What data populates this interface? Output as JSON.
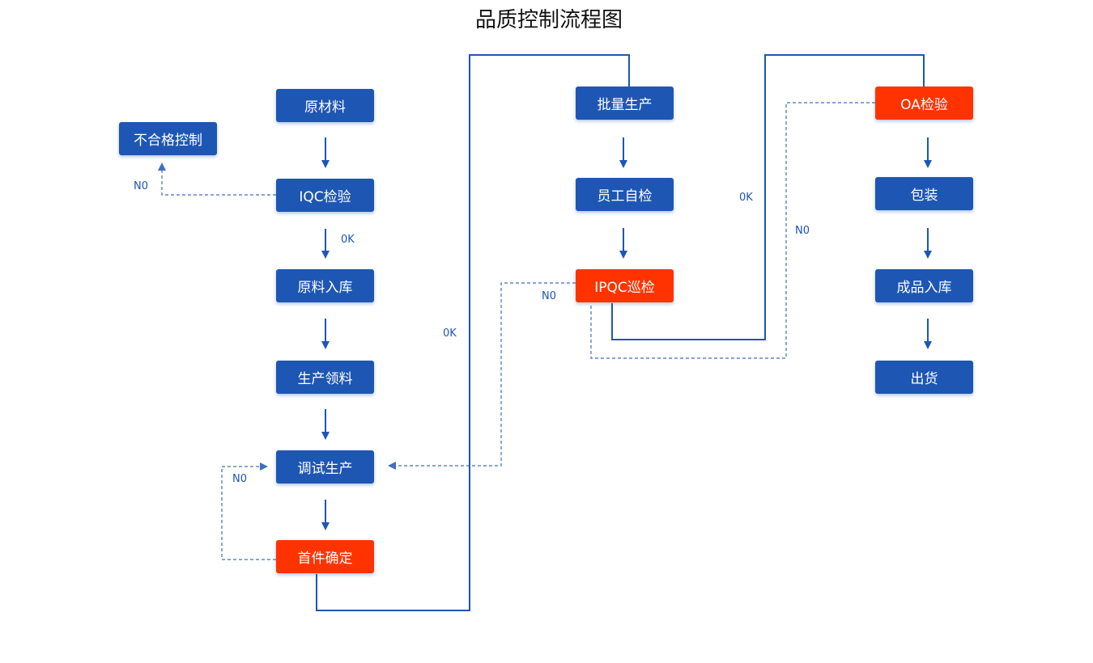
{
  "title": "品质控制流程图",
  "colors": {
    "process": "#1e56b4",
    "inspection": "#ff3300",
    "line": "#1e56b4"
  },
  "nodes": {
    "raw_material": "原材料",
    "nonconforming_control": "不合格控制",
    "iqc": "IQC检验",
    "raw_storage": "原料入库",
    "material_requisition": "生产领料",
    "trial_production": "调试生产",
    "first_article": "首件确定",
    "mass_production": "批量生产",
    "self_inspection": "员工自检",
    "ipqc": "IPQC巡检",
    "oa": "OA检验",
    "packaging": "包装",
    "finished_storage": "成品入库",
    "shipment": "出货"
  },
  "edge_labels": {
    "iqc_no": "N0",
    "iqc_ok": "0K",
    "first_article_no": "N0",
    "first_article_ok": "0K",
    "ipqc_no": "N0",
    "ipqc_ok": "0K",
    "oa_no": "N0"
  }
}
